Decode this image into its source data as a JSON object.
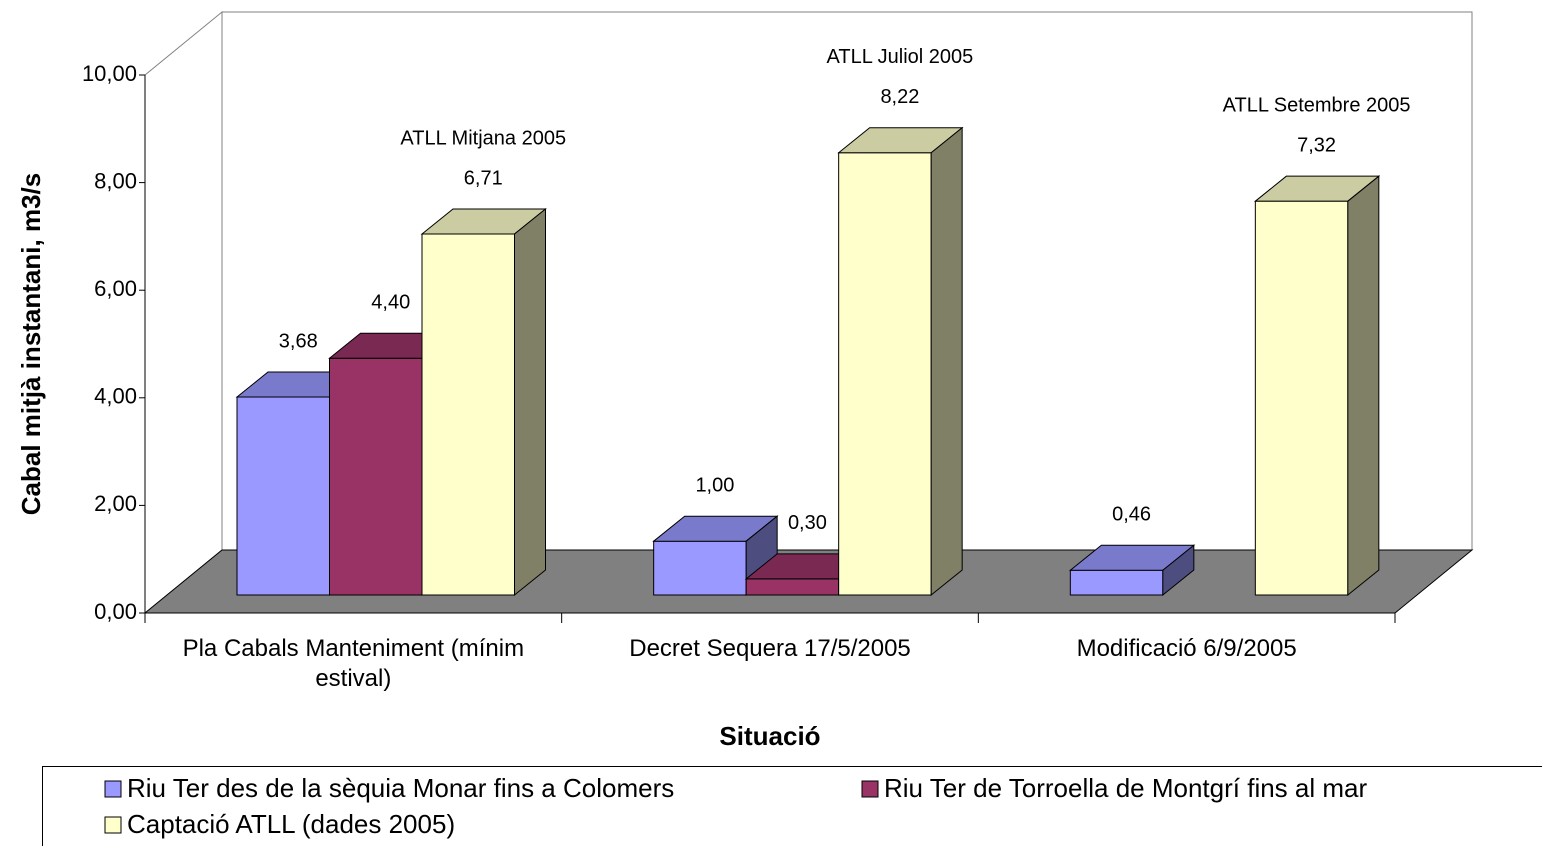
{
  "chart_data": {
    "type": "bar3d",
    "ylabel": "Cabal mitjà instantani, m3/s",
    "xlabel": "Situació",
    "categories": [
      "Pla Cabals Manteniment (mínim estival)",
      "Decret Sequera 17/5/2005",
      "Modificació 6/9/2005"
    ],
    "ylim": [
      0,
      10
    ],
    "yticks": [
      {
        "value": 0,
        "label": "0,00"
      },
      {
        "value": 2,
        "label": "2,00"
      },
      {
        "value": 4,
        "label": "4,00"
      },
      {
        "value": 6,
        "label": "6,00"
      },
      {
        "value": 8,
        "label": "8,00"
      },
      {
        "value": 10,
        "label": "10,00"
      }
    ],
    "series": [
      {
        "name": "Riu Ter des de la sèquia Monar fins a Colomers",
        "color": "#9999ff",
        "values": [
          3.68,
          1.0,
          0.46
        ],
        "value_labels": [
          "3,68",
          "1,00",
          "0,46"
        ]
      },
      {
        "name": "Riu Ter de Torroella de Montgrí fins al mar",
        "color": "#993366",
        "values": [
          4.4,
          0.3,
          null
        ],
        "value_labels": [
          "4,40",
          "0,30",
          null
        ]
      },
      {
        "name": "Captació ATLL (dades 2005)",
        "color": "#ffffcc",
        "values": [
          6.71,
          8.22,
          7.32
        ],
        "value_labels": [
          "6,71",
          "8,22",
          "7,32"
        ],
        "annotations": [
          "ATLL Mitjana 2005",
          "ATLL Juliol 2005",
          "ATLL Setembre 2005"
        ]
      }
    ],
    "legend": "bottom"
  }
}
